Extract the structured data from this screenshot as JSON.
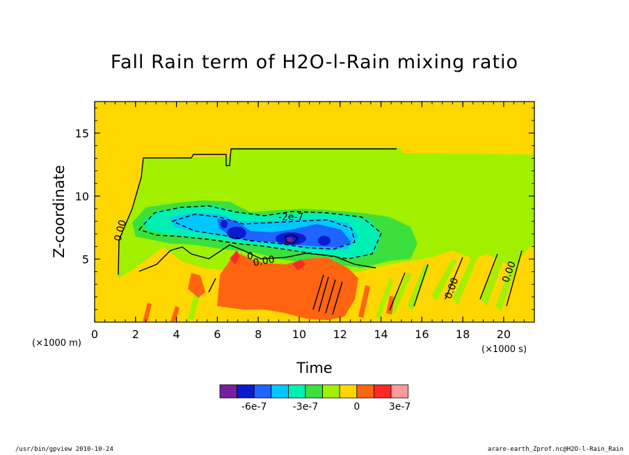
{
  "chart_data": {
    "type": "heatmap",
    "title": "Fall Rain term of H2O-l-Rain mixing ratio",
    "xlabel": "Time",
    "ylabel": "Z-coordinate",
    "x_unit": "(×1000 s)",
    "y_unit": "(×1000 m)",
    "xlim": [
      0,
      21.5
    ],
    "ylim": [
      0,
      17.5
    ],
    "x_ticks": [
      0,
      2,
      4,
      6,
      8,
      10,
      12,
      14,
      16,
      18,
      20
    ],
    "y_ticks": [
      5,
      10,
      15
    ],
    "contour_labels": [
      {
        "text": "0.00",
        "x": 1.4,
        "y": 7.2,
        "rotate": -75
      },
      {
        "text": "-2e-7",
        "x": 9.6,
        "y": 8.1,
        "rotate": 0
      },
      {
        "text": "0",
        "x": 7.6,
        "y": 5.0,
        "rotate": 0
      },
      {
        "text": "0.00",
        "x": 8.3,
        "y": 4.6,
        "rotate": -10
      },
      {
        "text": "0.00",
        "x": 17.6,
        "y": 2.6,
        "rotate": -70
      },
      {
        "text": "0.00",
        "x": 20.4,
        "y": 3.9,
        "rotate": -70
      }
    ],
    "colorbar": {
      "colors": [
        "#7a1fa2",
        "#0a1ad0",
        "#1e64ff",
        "#00c8ff",
        "#00f0b4",
        "#3ce03c",
        "#a0f000",
        "#ffd700",
        "#ff6410",
        "#ff2828",
        "#ff9a9a"
      ],
      "tick_labels": [
        "-6e-7",
        "-3e-7",
        "0",
        "3e-7"
      ]
    }
  },
  "footer": {
    "left": "/usr/bin/gpview  2010-10-24",
    "right": "arare-earth_Zprof.nc@H2O-l-Rain_Rain"
  }
}
